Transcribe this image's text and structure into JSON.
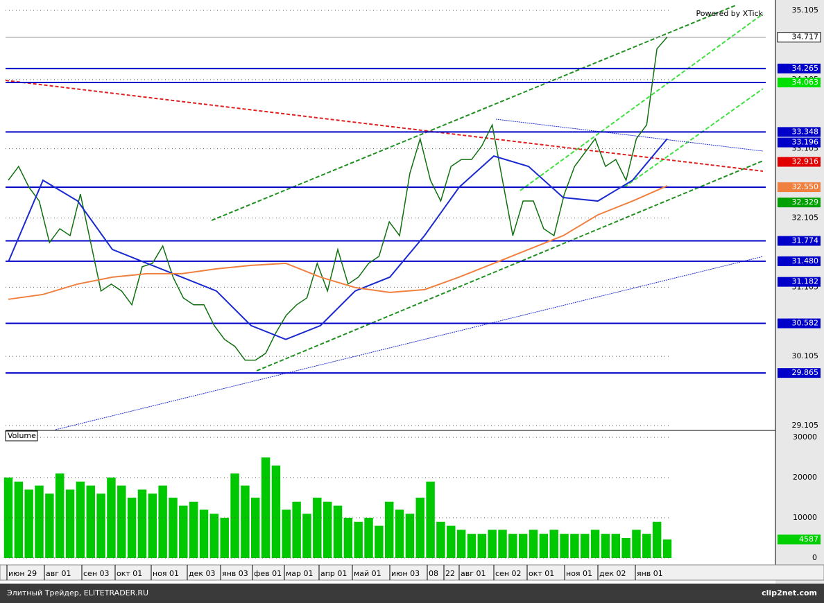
{
  "chart_data": [
    {
      "type": "line",
      "powered": "Powered by XTick",
      "ylim": [
        29.045,
        35.175
      ],
      "yticks": [
        35.105,
        34.105,
        33.105,
        32.105,
        31.105,
        30.105,
        29.105
      ],
      "grid": true,
      "x_labels": [
        "июн 29",
        "авг 01",
        "сен 03",
        "окт 01",
        "ноя 01",
        "дек 03",
        "янв 03",
        "фев 01",
        "мар 01",
        "апр 01",
        "май 01",
        "июн 03",
        "08",
        "22",
        "авг 01",
        "сен 02",
        "окт 01",
        "ноя 01",
        "дек 02",
        "янв 01"
      ],
      "series": [
        {
          "color": "#107010",
          "values": [
            32.65,
            32.85,
            32.55,
            32.35,
            31.75,
            31.95,
            31.85,
            32.45,
            31.75,
            31.05,
            31.15,
            31.05,
            30.85,
            31.4,
            31.45,
            31.7,
            31.25,
            30.95,
            30.85,
            30.85,
            30.55,
            30.35,
            30.25,
            30.05,
            30.05,
            30.15,
            30.45,
            30.7,
            30.85,
            30.95,
            31.45,
            31.05,
            31.65,
            31.15,
            31.25,
            31.45,
            31.55,
            32.05,
            31.85,
            32.75,
            33.25,
            32.65,
            32.35,
            32.85,
            32.95,
            32.95,
            33.15,
            33.45,
            32.65,
            31.85,
            32.35,
            32.35,
            31.95,
            31.85,
            32.45,
            32.85,
            33.05,
            33.25,
            32.85,
            32.95,
            32.65,
            33.25,
            33.45,
            34.55,
            34.72
          ]
        },
        {
          "color": "#1a2ad0",
          "values": [
            31.47,
            32.65,
            32.35,
            31.65,
            31.45,
            31.25,
            31.05,
            30.55,
            30.35,
            30.55,
            31.05,
            31.25,
            31.85,
            32.55,
            33.0,
            32.85,
            32.4,
            32.35,
            32.65,
            33.25
          ]
        },
        {
          "color": "#f08040",
          "values": [
            30.93,
            31.0,
            31.15,
            31.25,
            31.3,
            31.3,
            31.37,
            31.42,
            31.45,
            31.25,
            31.1,
            31.03,
            31.07,
            31.25,
            31.45,
            31.65,
            31.85,
            32.15,
            32.35,
            32.57
          ]
        }
      ],
      "levels": [
        {
          "value": 34.265,
          "color": "#0000c8",
          "line": true
        },
        {
          "value": 34.063,
          "color": "#00e000",
          "line": true
        },
        {
          "value": 33.348,
          "color": "#0000c8",
          "line": true
        },
        {
          "value": 33.196,
          "color": "#0000c8",
          "line": false
        },
        {
          "value": 32.916,
          "color": "#e00000",
          "line": false
        },
        {
          "value": 32.55,
          "label": "32.550",
          "color": "#f08040",
          "line": true
        },
        {
          "value": 32.329,
          "color": "#00a000",
          "line": false
        },
        {
          "value": 31.774,
          "color": "#0000c8",
          "line": true
        },
        {
          "value": 31.48,
          "label": "31.480",
          "color": "#0000c8",
          "line": true
        },
        {
          "value": 31.182,
          "color": "#0000c8",
          "line": false
        },
        {
          "value": 30.582,
          "color": "#0000c8",
          "line": true
        },
        {
          "value": 29.865,
          "color": "#0000c8",
          "line": true
        },
        {
          "value": 34.717,
          "color": "#ffffff",
          "line": true
        }
      ]
    },
    {
      "type": "bar",
      "title": "Volume",
      "color": "#00c800",
      "ylim": [
        0,
        31550
      ],
      "yticks": [
        30000,
        20000,
        10000,
        0
      ],
      "values": [
        20000,
        19000,
        17000,
        18000,
        16000,
        21000,
        17000,
        19000,
        18000,
        16000,
        20000,
        18000,
        15000,
        17000,
        16000,
        18000,
        15000,
        13000,
        14000,
        12000,
        11000,
        10000,
        21000,
        18000,
        15000,
        25000,
        23000,
        12000,
        14000,
        11000,
        15000,
        14000,
        13000,
        10000,
        9000,
        10000,
        8000,
        14000,
        12000,
        11000,
        15000,
        19000,
        9000,
        8000,
        7000,
        6000,
        6000,
        7000,
        7000,
        6000,
        6000,
        7000,
        6000,
        7000,
        6000,
        6000,
        6000,
        7000,
        6000,
        6000,
        5000,
        7000,
        6000,
        9000,
        4587
      ],
      "last": 4587
    }
  ],
  "footer": {
    "left": "Элитный Трейдер, ELITETRADER.RU",
    "right": "clip2net.com"
  }
}
